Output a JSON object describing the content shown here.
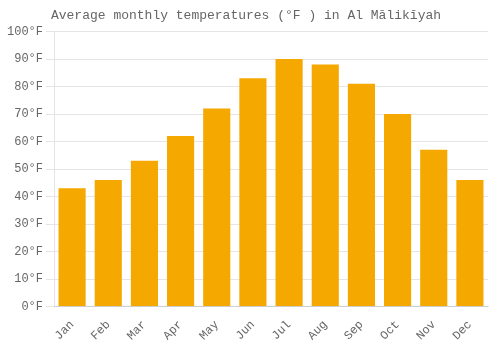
{
  "chart_data": {
    "type": "bar",
    "title": "Average monthly temperatures (°F ) in Al Mālikīyah",
    "categories": [
      "Jan",
      "Feb",
      "Mar",
      "Apr",
      "May",
      "Jun",
      "Jul",
      "Aug",
      "Sep",
      "Oct",
      "Nov",
      "Dec"
    ],
    "values": [
      43,
      46,
      53,
      62,
      72,
      83,
      90,
      88,
      81,
      70,
      57,
      46
    ],
    "color": "#F5A800",
    "ylim": [
      0,
      100
    ],
    "yticks": [
      {
        "value": 0,
        "label": "0°F"
      },
      {
        "value": 10,
        "label": "10°F"
      },
      {
        "value": 20,
        "label": "20°F"
      },
      {
        "value": 30,
        "label": "30°F"
      },
      {
        "value": 40,
        "label": "40°F"
      },
      {
        "value": 50,
        "label": "50°F"
      },
      {
        "value": 60,
        "label": "60°F"
      },
      {
        "value": 70,
        "label": "70°F"
      },
      {
        "value": 80,
        "label": "80°F"
      },
      {
        "value": 90,
        "label": "90°F"
      },
      {
        "value": 100,
        "label": "100°F"
      }
    ],
    "grid": true
  }
}
